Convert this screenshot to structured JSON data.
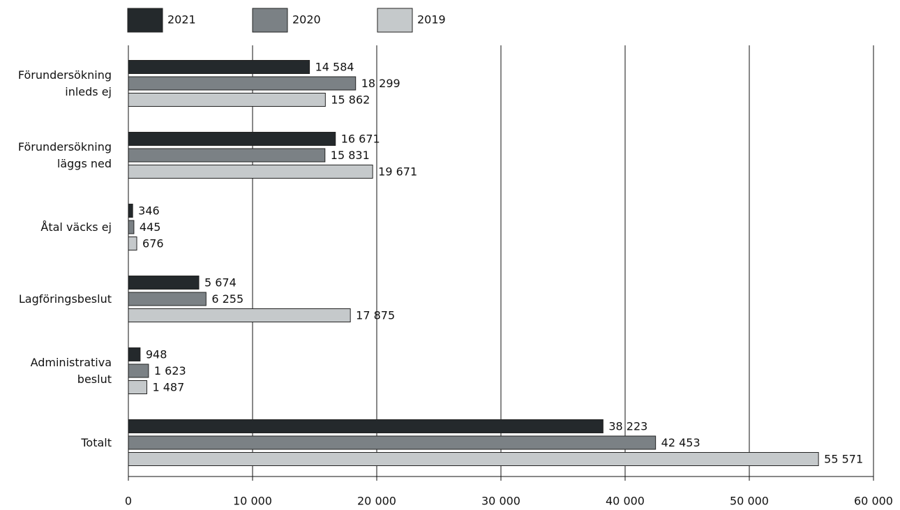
{
  "chart_data": {
    "type": "bar",
    "orientation": "horizontal",
    "categories": [
      "Förundersökning inleds ej",
      "Förundersökning läggs ned",
      "Åtal väcks ej",
      "Lagföringsbeslut",
      "Administrativa beslut",
      "Totalt"
    ],
    "series": [
      {
        "name": "2021",
        "color": "#24292c",
        "values": [
          14584,
          16671,
          346,
          5674,
          948,
          38223
        ],
        "value_labels": [
          "14 584",
          "16 671",
          "346",
          "5 674",
          "948",
          "38 223"
        ]
      },
      {
        "name": "2020",
        "color": "#7b8185",
        "values": [
          18299,
          15831,
          445,
          6255,
          1623,
          42453
        ],
        "value_labels": [
          "18 299",
          "15 831",
          "445",
          "6 255",
          "1 623",
          "42 453"
        ]
      },
      {
        "name": "2019",
        "color": "#c5c9cb",
        "values": [
          15862,
          19671,
          676,
          17875,
          1487,
          55571
        ],
        "value_labels": [
          "15 862",
          "19 671",
          "676",
          "17 875",
          "1 487",
          "55 571"
        ]
      }
    ],
    "xlim": [
      0,
      60000
    ],
    "xticks": [
      0,
      {
        "value": 10000,
        "label": "10 000"
      },
      {
        "value": 20000,
        "label": "20 000"
      },
      {
        "value": 30000,
        "label": "30 000"
      },
      {
        "value": 40000,
        "label": "40 000"
      },
      {
        "value": 50000,
        "label": "50 000"
      },
      {
        "value": 60000,
        "label": "60 000"
      }
    ],
    "grid": true,
    "legend": "top"
  }
}
